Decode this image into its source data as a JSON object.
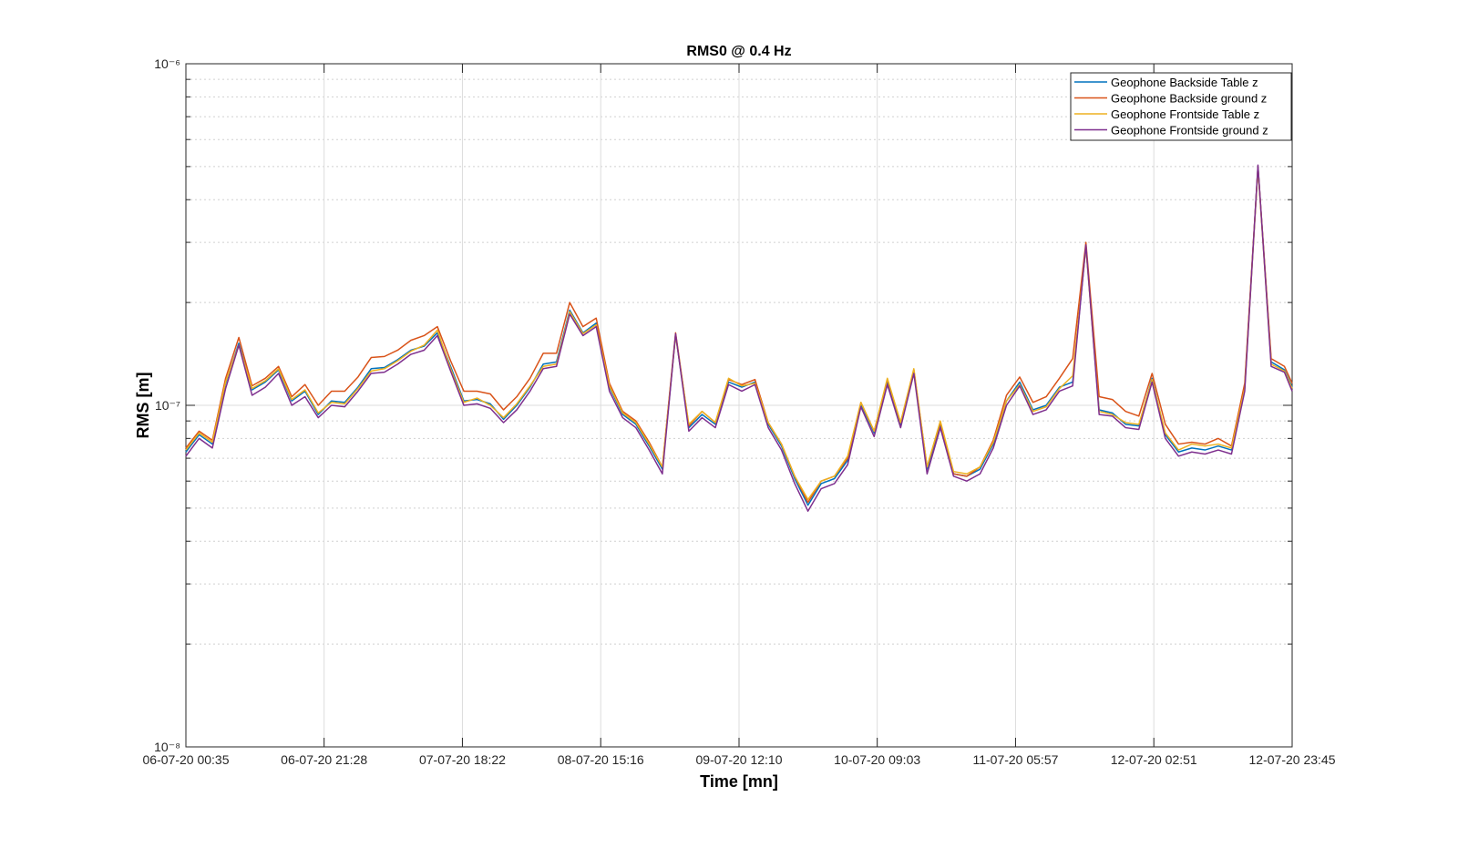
{
  "chart_data": {
    "type": "line",
    "title": "RMS0 @ 0.4 Hz",
    "xlabel": "Time [mn]",
    "ylabel": "RMS [m]",
    "yscale": "log",
    "grid": true,
    "legend": "northeast",
    "xlim": [
      "06-07-20 00:35",
      "12-07-20 23:45"
    ],
    "xticks": [
      "06-07-20 00:35",
      "06-07-20 21:28",
      "07-07-20 18:22",
      "08-07-20 15:16",
      "09-07-20 12:10",
      "10-07-20 09:03",
      "11-07-20 05:57",
      "12-07-20 02:51",
      "12-07-20 23:45"
    ],
    "ylim": [
      1e-08,
      1e-06
    ],
    "yticks": [
      {
        "value": 1e-08,
        "label": "10⁻⁸"
      },
      {
        "value": 1e-07,
        "label": "10⁻⁷"
      },
      {
        "value": 1e-06,
        "label": "10⁻⁶"
      }
    ],
    "yminorticks": [
      2e-08,
      3e-08,
      4e-08,
      5e-08,
      6e-08,
      7e-08,
      8e-08,
      9e-08,
      2e-07,
      3e-07,
      4e-07,
      5e-07,
      6e-07,
      7e-07,
      8e-07,
      9e-07
    ],
    "x": [
      "06-07-20 00:35",
      "06-07-20 02:35",
      "06-07-20 04:35",
      "06-07-20 06:35",
      "06-07-20 08:35",
      "06-07-20 10:35",
      "06-07-20 12:35",
      "06-07-20 14:35",
      "06-07-20 16:35",
      "06-07-20 18:35",
      "06-07-20 20:35",
      "06-07-20 22:35",
      "07-07-20 00:35",
      "07-07-20 02:35",
      "07-07-20 04:35",
      "07-07-20 06:35",
      "07-07-20 08:35",
      "07-07-20 10:35",
      "07-07-20 12:35",
      "07-07-20 14:35",
      "07-07-20 16:35",
      "07-07-20 18:35",
      "07-07-20 20:35",
      "07-07-20 22:35",
      "08-07-20 00:35",
      "08-07-20 02:35",
      "08-07-20 04:35",
      "08-07-20 06:35",
      "08-07-20 08:35",
      "08-07-20 10:35",
      "08-07-20 12:35",
      "08-07-20 14:35",
      "08-07-20 16:35",
      "08-07-20 18:35",
      "08-07-20 20:35",
      "08-07-20 22:35",
      "09-07-20 00:35",
      "09-07-20 02:35",
      "09-07-20 04:35",
      "09-07-20 06:35",
      "09-07-20 08:35",
      "09-07-20 10:35",
      "09-07-20 12:35",
      "09-07-20 14:35",
      "09-07-20 16:35",
      "09-07-20 18:35",
      "09-07-20 20:35",
      "09-07-20 22:35",
      "10-07-20 00:35",
      "10-07-20 02:35",
      "10-07-20 04:35",
      "10-07-20 06:35",
      "10-07-20 08:35",
      "10-07-20 10:35",
      "10-07-20 12:35",
      "10-07-20 14:35",
      "10-07-20 16:35",
      "10-07-20 18:35",
      "10-07-20 20:35",
      "10-07-20 22:35",
      "11-07-20 00:35",
      "11-07-20 02:35",
      "11-07-20 04:35",
      "11-07-20 06:35",
      "11-07-20 08:35",
      "11-07-20 10:35",
      "11-07-20 12:35",
      "11-07-20 14:35",
      "11-07-20 16:35",
      "11-07-20 18:35",
      "11-07-20 20:35",
      "11-07-20 22:35",
      "12-07-20 00:35",
      "12-07-20 02:35",
      "12-07-20 04:35",
      "12-07-20 06:35",
      "12-07-20 08:35",
      "12-07-20 10:35",
      "12-07-20 12:35",
      "12-07-20 14:35",
      "12-07-20 16:35",
      "12-07-20 18:35",
      "12-07-20 20:35",
      "12-07-20 22:35",
      "12-07-20 23:45"
    ],
    "series": [
      {
        "name": "Geophone Backside Table z",
        "color": "#0072BD",
        "values": [
          7.3e-08,
          8.2e-08,
          7.7e-08,
          1.16e-07,
          1.52e-07,
          1.11e-07,
          1.17e-07,
          1.27e-07,
          1.03e-07,
          1.1e-07,
          9.4e-08,
          1.03e-07,
          1.02e-07,
          1.13e-07,
          1.28e-07,
          1.29e-07,
          1.36e-07,
          1.45e-07,
          1.49e-07,
          1.63e-07,
          1.3e-07,
          1.03e-07,
          1.04e-07,
          1.01e-07,
          9.1e-08,
          1e-07,
          1.13e-07,
          1.32e-07,
          1.34e-07,
          1.9e-07,
          1.63e-07,
          1.74e-07,
          1.13e-07,
          9.4e-08,
          8.8e-08,
          7.6e-08,
          6.5e-08,
          1.61e-07,
          8.6e-08,
          9.4e-08,
          8.8e-08,
          1.17e-07,
          1.13e-07,
          1.17e-07,
          8.8e-08,
          7.6e-08,
          6.1e-08,
          5.1e-08,
          5.9e-08,
          6.1e-08,
          6.9e-08,
          1.01e-07,
          8.3e-08,
          1.17e-07,
          8.8e-08,
          1.26e-07,
          6.5e-08,
          8.8e-08,
          6.3e-08,
          6.2e-08,
          6.5e-08,
          7.7e-08,
          1.03e-07,
          1.17e-07,
          9.7e-08,
          1e-07,
          1.13e-07,
          1.17e-07,
          2.93e-07,
          9.7e-08,
          9.5e-08,
          8.8e-08,
          8.7e-08,
          1.2e-07,
          8.2e-08,
          7.3e-08,
          7.5e-08,
          7.4e-08,
          7.6e-08,
          7.4e-08,
          1.13e-07,
          5e-07,
          1.34e-07,
          1.27e-07,
          1.13e-07
        ]
      },
      {
        "name": "Geophone Backside ground z",
        "color": "#D95319",
        "values": [
          7.5e-08,
          8.4e-08,
          7.9e-08,
          1.2e-07,
          1.58e-07,
          1.14e-07,
          1.2e-07,
          1.3e-07,
          1.06e-07,
          1.15e-07,
          1e-07,
          1.1e-07,
          1.1e-07,
          1.21e-07,
          1.38e-07,
          1.39e-07,
          1.45e-07,
          1.55e-07,
          1.6e-07,
          1.7e-07,
          1.35e-07,
          1.1e-07,
          1.1e-07,
          1.08e-07,
          9.7e-08,
          1.06e-07,
          1.2e-07,
          1.42e-07,
          1.42e-07,
          2e-07,
          1.7e-07,
          1.8e-07,
          1.16e-07,
          9.6e-08,
          9e-08,
          7.8e-08,
          6.6e-08,
          1.63e-07,
          8.7e-08,
          9.6e-08,
          8.9e-08,
          1.19e-07,
          1.15e-07,
          1.19e-07,
          8.9e-08,
          7.7e-08,
          6.2e-08,
          5.2e-08,
          6e-08,
          6.2e-08,
          7e-08,
          1.02e-07,
          8.4e-08,
          1.19e-07,
          8.9e-08,
          1.27e-07,
          6.6e-08,
          8.9e-08,
          6.3e-08,
          6.2e-08,
          6.6e-08,
          7.9e-08,
          1.07e-07,
          1.21e-07,
          1.02e-07,
          1.06e-07,
          1.2e-07,
          1.37e-07,
          3e-07,
          1.06e-07,
          1.04e-07,
          9.6e-08,
          9.3e-08,
          1.24e-07,
          8.8e-08,
          7.7e-08,
          7.8e-08,
          7.7e-08,
          8e-08,
          7.6e-08,
          1.16e-07,
          5e-07,
          1.37e-07,
          1.3e-07,
          1.16e-07
        ]
      },
      {
        "name": "Geophone Frontside Table z",
        "color": "#EDB120",
        "values": [
          7.4e-08,
          8.3e-08,
          7.8e-08,
          1.17e-07,
          1.5e-07,
          1.12e-07,
          1.18e-07,
          1.28e-07,
          1.04e-07,
          1.11e-07,
          9.5e-08,
          1.02e-07,
          1.01e-07,
          1.12e-07,
          1.26e-07,
          1.28e-07,
          1.35e-07,
          1.44e-07,
          1.5e-07,
          1.66e-07,
          1.28e-07,
          1.02e-07,
          1.05e-07,
          1e-07,
          9.2e-08,
          1.01e-07,
          1.14e-07,
          1.3e-07,
          1.32e-07,
          1.88e-07,
          1.62e-07,
          1.72e-07,
          1.14e-07,
          9.5e-08,
          8.9e-08,
          7.7e-08,
          6.6e-08,
          1.6e-07,
          8.8e-08,
          9.6e-08,
          8.9e-08,
          1.2e-07,
          1.14e-07,
          1.16e-07,
          8.9e-08,
          7.7e-08,
          6.2e-08,
          5.3e-08,
          6e-08,
          6.2e-08,
          7.1e-08,
          1.02e-07,
          8.4e-08,
          1.2e-07,
          8.9e-08,
          1.28e-07,
          6.6e-08,
          9e-08,
          6.4e-08,
          6.3e-08,
          6.6e-08,
          7.8e-08,
          1.03e-07,
          1.15e-07,
          9.6e-08,
          9.9e-08,
          1.12e-07,
          1.22e-07,
          2.9e-07,
          9.6e-08,
          9.4e-08,
          8.9e-08,
          8.8e-08,
          1.19e-07,
          8.3e-08,
          7.4e-08,
          7.7e-08,
          7.6e-08,
          7.7e-08,
          7.5e-08,
          1.12e-07,
          4.95e-07,
          1.32e-07,
          1.26e-07,
          1.12e-07
        ]
      },
      {
        "name": "Geophone Frontside ground z",
        "color": "#7E2F8E",
        "values": [
          7.1e-08,
          8e-08,
          7.5e-08,
          1.12e-07,
          1.5e-07,
          1.07e-07,
          1.13e-07,
          1.24e-07,
          1e-07,
          1.06e-07,
          9.2e-08,
          1e-07,
          9.9e-08,
          1.1e-07,
          1.24e-07,
          1.25e-07,
          1.32e-07,
          1.41e-07,
          1.45e-07,
          1.6e-07,
          1.26e-07,
          1e-07,
          1.01e-07,
          9.8e-08,
          8.9e-08,
          9.7e-08,
          1.1e-07,
          1.28e-07,
          1.3e-07,
          1.85e-07,
          1.6e-07,
          1.7e-07,
          1.1e-07,
          9.2e-08,
          8.6e-08,
          7.4e-08,
          6.3e-08,
          1.62e-07,
          8.4e-08,
          9.2e-08,
          8.6e-08,
          1.15e-07,
          1.1e-07,
          1.15e-07,
          8.6e-08,
          7.4e-08,
          5.9e-08,
          4.9e-08,
          5.7e-08,
          5.9e-08,
          6.7e-08,
          9.9e-08,
          8.1e-08,
          1.15e-07,
          8.6e-08,
          1.24e-07,
          6.3e-08,
          8.6e-08,
          6.2e-08,
          6e-08,
          6.3e-08,
          7.5e-08,
          1e-07,
          1.14e-07,
          9.4e-08,
          9.7e-08,
          1.1e-07,
          1.14e-07,
          2.95e-07,
          9.4e-08,
          9.3e-08,
          8.6e-08,
          8.5e-08,
          1.17e-07,
          8e-08,
          7.1e-08,
          7.3e-08,
          7.2e-08,
          7.4e-08,
          7.2e-08,
          1.1e-07,
          5.05e-07,
          1.3e-07,
          1.25e-07,
          1.1e-07
        ]
      }
    ]
  }
}
